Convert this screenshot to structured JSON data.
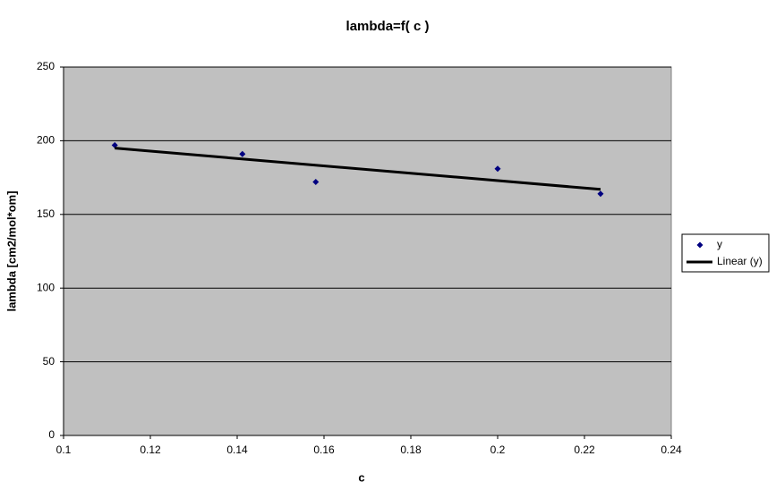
{
  "chart_data": {
    "type": "scatter",
    "title": "lambda=f( c )",
    "x_label": "c",
    "y_label": "lambda [cm2/mol*om]",
    "series": [
      {
        "name": "y",
        "color": "#000080",
        "marker": "diamond",
        "x": [
          0.1118,
          0.1412,
          0.1581,
          0.2,
          0.2237
        ],
        "values": [
          197,
          191,
          172,
          181,
          164
        ]
      },
      {
        "name": "Linear (y)",
        "color": "#000000",
        "marker": "line",
        "x": [
          0.1118,
          0.2237
        ],
        "values": [
          195,
          167
        ]
      }
    ],
    "xlim": [
      0.1,
      0.24
    ],
    "xticks": [
      0.1,
      0.12,
      0.14,
      0.16,
      0.18,
      0.2,
      0.22,
      0.24
    ],
    "ylim": [
      0,
      250
    ],
    "yticks": [
      0,
      50,
      100,
      150,
      200,
      250
    ],
    "grid": true,
    "legend": "right",
    "plot_background": "#c0c0c0"
  }
}
